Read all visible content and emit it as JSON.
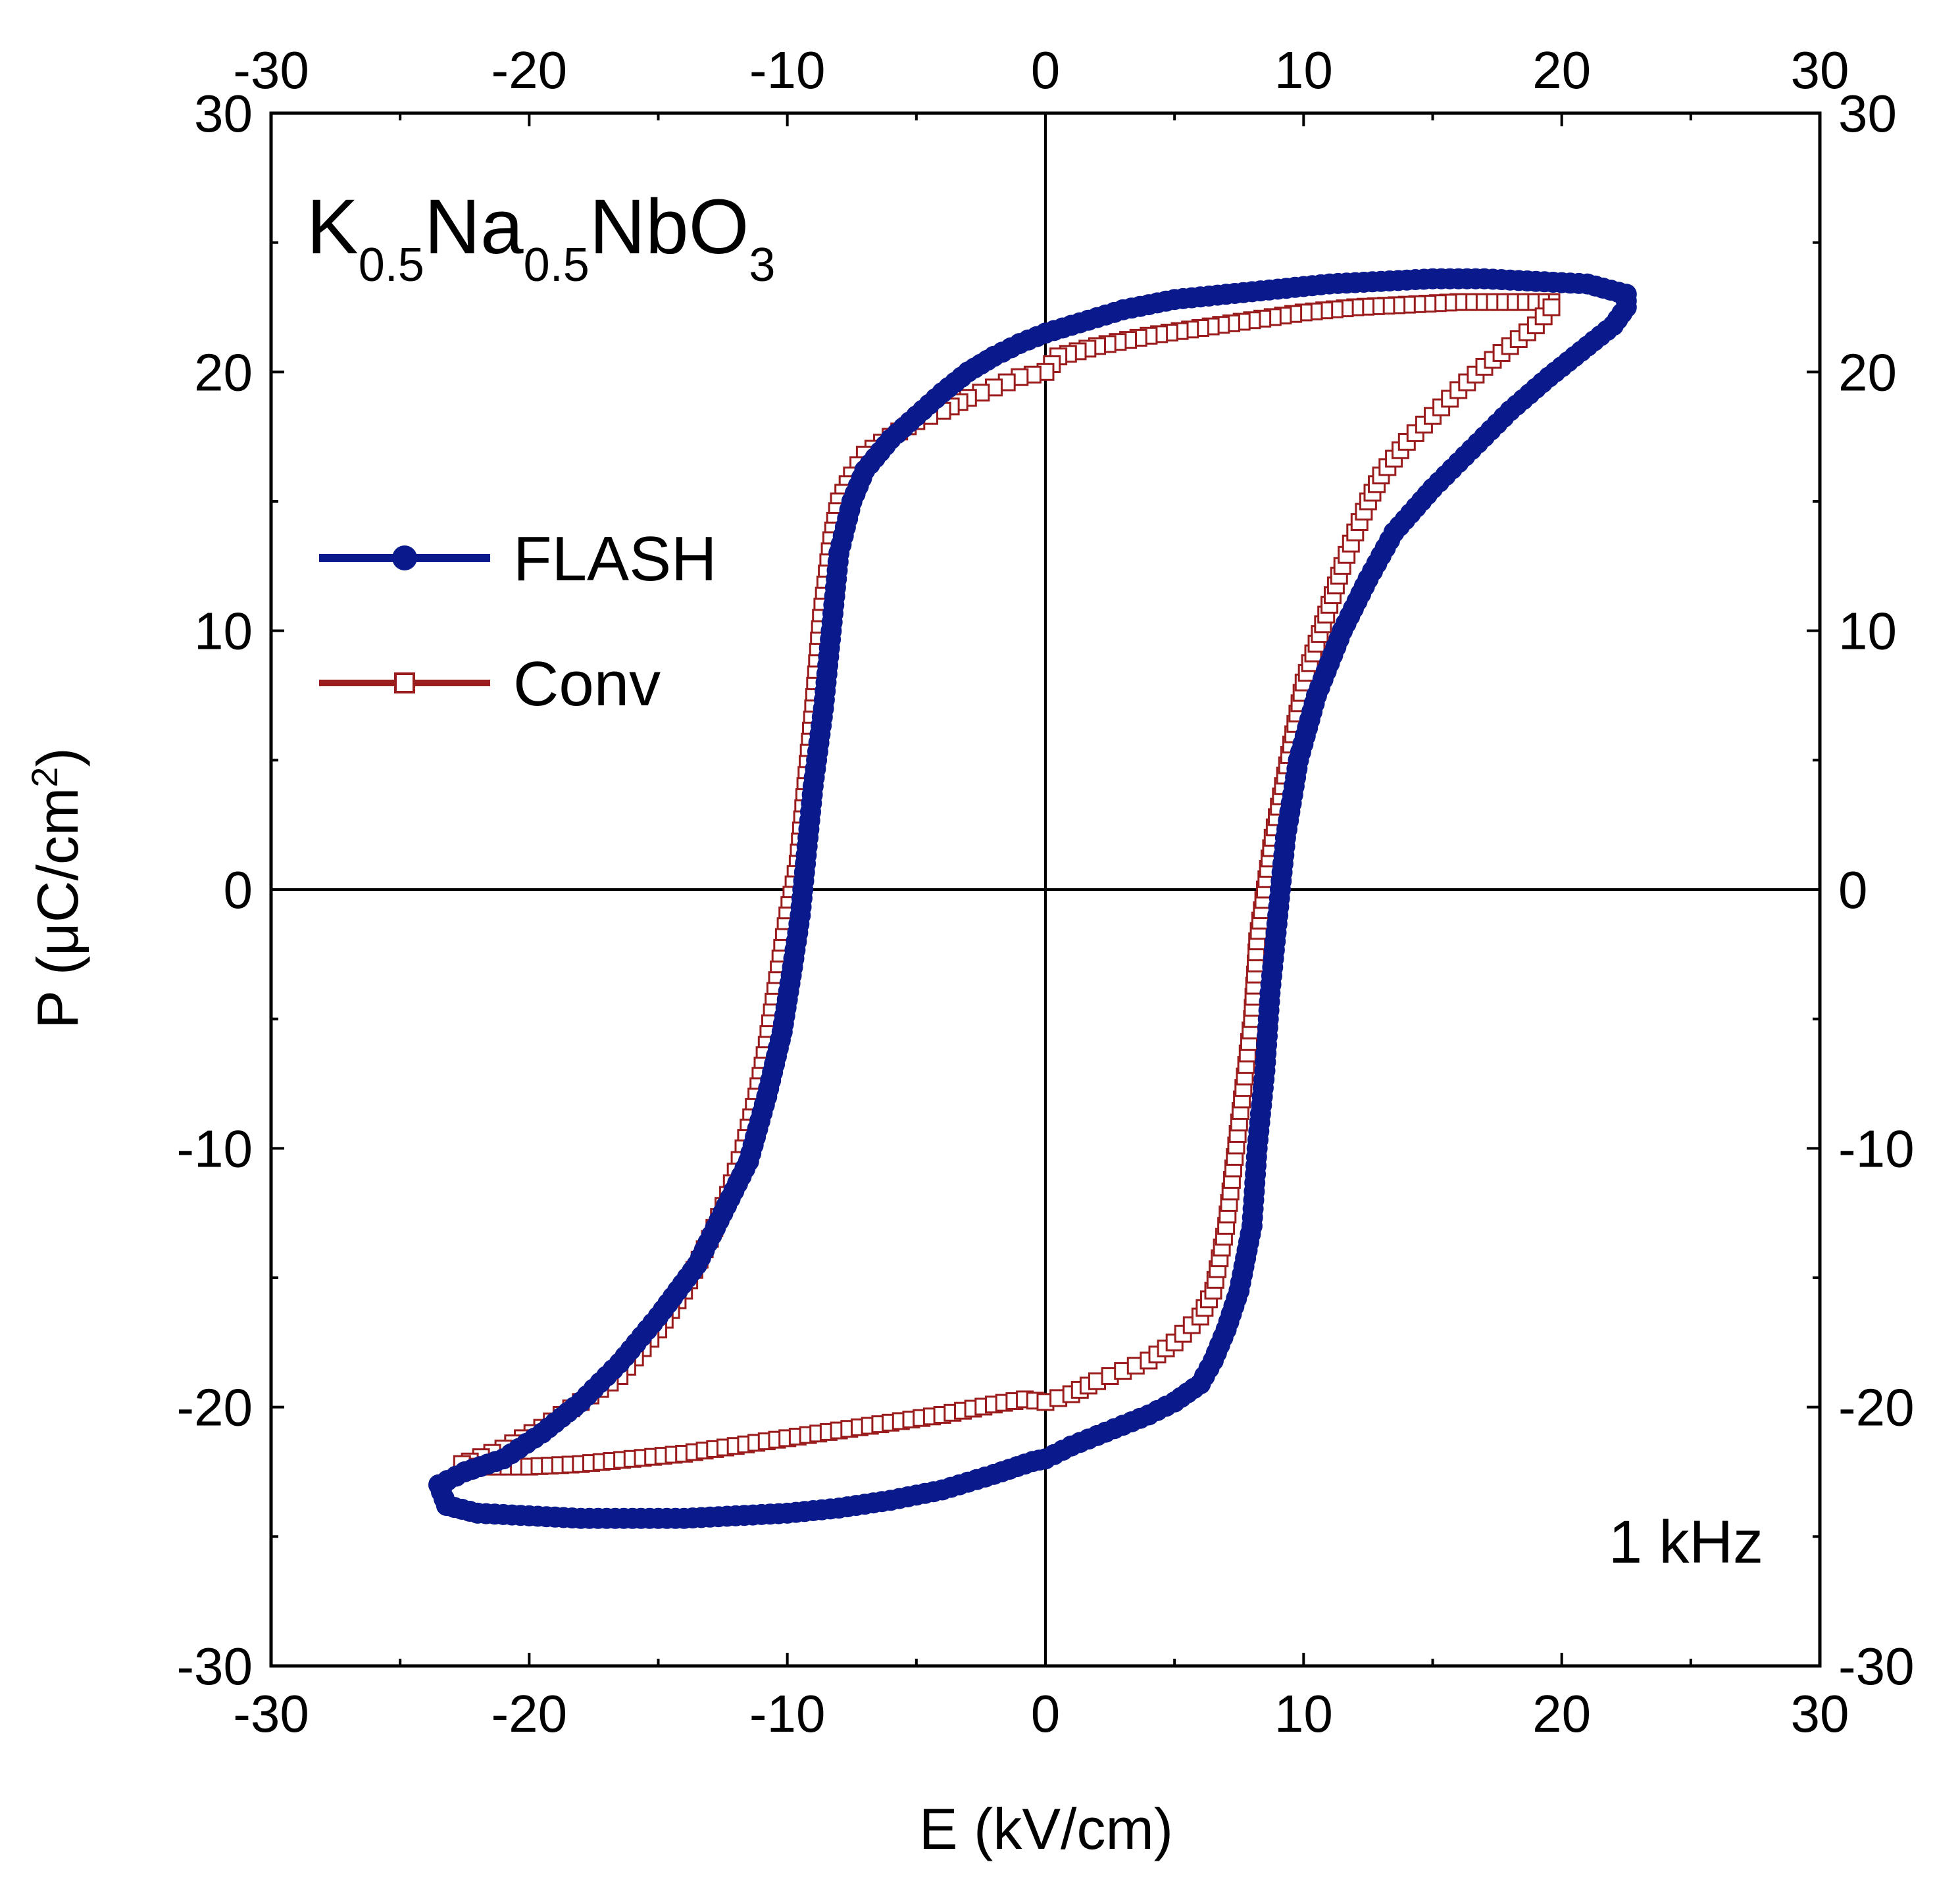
{
  "chart_data": {
    "type": "line",
    "title": "",
    "compound": {
      "base": [
        "K",
        "Na",
        "NbO"
      ],
      "subs": [
        "0.5",
        "0.5",
        "3"
      ]
    },
    "xlabel": "E (kV/cm)",
    "ylabel": {
      "pre": "P (μC/cm",
      "sup": "2",
      "post": ")"
    },
    "xlim": [
      -30,
      30
    ],
    "ylim": [
      -30,
      30
    ],
    "xticks": [
      -30,
      -20,
      -10,
      0,
      10,
      20,
      30
    ],
    "yticks": [
      -30,
      -20,
      -10,
      0,
      10,
      20,
      30
    ],
    "xtick_labels": [
      "-30",
      "-20",
      "-10",
      "0",
      "10",
      "20",
      "30"
    ],
    "ytick_labels": [
      "-30",
      "-20",
      "-10",
      "0",
      "10",
      "20",
      "30"
    ],
    "mirror_axes": "ticks and tick labels repeated on top and right",
    "zero_lines": true,
    "grid": false,
    "legend_position": "upper-left",
    "annotation": "1 kHz",
    "colors": {
      "FLASH": "#0a1a8c",
      "Conv": "#9b1c1c",
      "axes": "#000000"
    },
    "series": [
      {
        "name": "FLASH",
        "marker": "filled-circle",
        "x": [
          22.5,
          21,
          19,
          17,
          15,
          13,
          11,
          9,
          7,
          5,
          3,
          1,
          0,
          -1,
          -2,
          -3,
          -4,
          -5,
          -6,
          -7,
          -7.5,
          -8,
          -8.3,
          -8.6,
          -9,
          -9.3,
          -9.5,
          -9.8,
          -10.2,
          -10.8,
          -11.5,
          -12.5,
          -13.5,
          -15,
          -16.5,
          -18,
          -19.5,
          -21,
          -22.5,
          -23.5,
          -23.2,
          -22,
          -20,
          -18,
          -16,
          -14,
          -12,
          -10,
          -8,
          -6,
          -4,
          -2,
          -0.5,
          0,
          1,
          2,
          3,
          4,
          5,
          6,
          6.5,
          7,
          7.5,
          8,
          8.2,
          8.5,
          8.7,
          9,
          9.3,
          9.8,
          10.5,
          11.5,
          12.5,
          13.5,
          15,
          16.5,
          18,
          19.5,
          21,
          22,
          22.5
        ],
        "y": [
          23,
          23.4,
          23.5,
          23.6,
          23.6,
          23.5,
          23.4,
          23.2,
          23,
          22.8,
          22.4,
          21.8,
          21.5,
          21.1,
          20.6,
          20,
          19.2,
          18.3,
          17.4,
          16.2,
          15,
          13,
          10,
          7,
          4,
          1,
          -1,
          -3,
          -5.5,
          -8,
          -10.5,
          -12.5,
          -14.5,
          -16.5,
          -18.3,
          -19.8,
          -21,
          -22,
          -22.5,
          -23,
          -23.8,
          -24.1,
          -24.2,
          -24.3,
          -24.3,
          -24.3,
          -24.2,
          -24.1,
          -23.9,
          -23.6,
          -23.2,
          -22.6,
          -22.1,
          -22,
          -21.5,
          -21.1,
          -20.7,
          -20.3,
          -19.8,
          -19.1,
          -18.2,
          -17,
          -15.5,
          -13,
          -10,
          -7,
          -4,
          -1,
          2,
          5,
          7.5,
          10,
          12,
          13.8,
          15.5,
          17,
          18.5,
          19.8,
          21,
          21.8,
          22.5
        ]
      },
      {
        "name": "Conv",
        "marker": "open-square",
        "x": [
          19.6,
          18,
          16,
          14,
          12,
          10,
          8,
          6,
          4,
          2,
          0.5,
          0,
          -1,
          -2,
          -3,
          -4,
          -5,
          -6,
          -7,
          -7.5,
          -8,
          -8.3,
          -8.7,
          -9,
          -9.3,
          -9.6,
          -10,
          -10.4,
          -10.8,
          -11.2,
          -11.7,
          -12.3,
          -13,
          -14,
          -15,
          -16.5,
          -18,
          -19.5,
          -21,
          -22.3,
          -22.6,
          -22,
          -20,
          -18,
          -16,
          -14,
          -12,
          -10,
          -8,
          -6,
          -4,
          -2,
          -0.8,
          0,
          1,
          2,
          3,
          4,
          5,
          6,
          6.5,
          7,
          7.5,
          8,
          8.2,
          8.5,
          8.8,
          9.2,
          9.6,
          10,
          10.5,
          11,
          11.5,
          12,
          12.5,
          13,
          14,
          15,
          16,
          17,
          18,
          19,
          19.6
        ],
        "y": [
          22.7,
          22.7,
          22.7,
          22.6,
          22.5,
          22.3,
          22,
          21.7,
          21.4,
          21,
          20.6,
          20,
          19.8,
          19.4,
          19,
          18.5,
          18.1,
          17.5,
          16.8,
          16,
          15,
          13.5,
          10.5,
          7,
          4,
          1,
          -1,
          -3.5,
          -6,
          -8,
          -10,
          -11.8,
          -13.5,
          -15.5,
          -17,
          -18.8,
          -19.8,
          -20.8,
          -21.6,
          -22.1,
          -22.2,
          -22.3,
          -22.3,
          -22.2,
          -22,
          -21.8,
          -21.5,
          -21.2,
          -20.9,
          -20.6,
          -20.3,
          -19.9,
          -19.7,
          -19.8,
          -19.5,
          -19,
          -18.6,
          -18.2,
          -17.5,
          -16.5,
          -15.5,
          -13,
          -9,
          -5,
          -2,
          0,
          2,
          4,
          6,
          8,
          9.5,
          11,
          12.5,
          13.8,
          15,
          16,
          17.3,
          18.3,
          19.3,
          20.2,
          21,
          21.8,
          22.5
        ]
      }
    ]
  }
}
